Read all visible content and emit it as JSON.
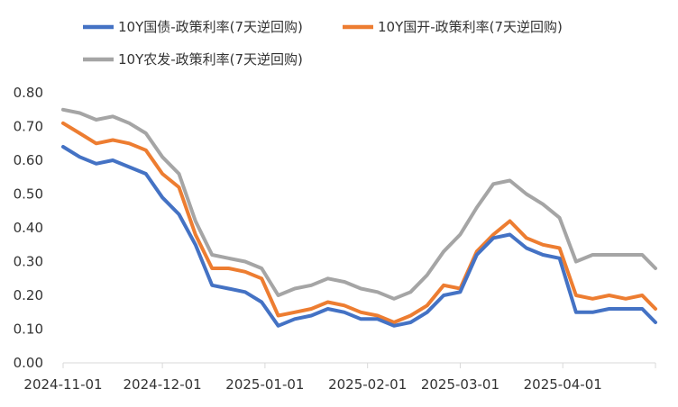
{
  "chart_data": {
    "type": "line",
    "title": "",
    "xlabel": "",
    "ylabel": "",
    "ylim": [
      0,
      0.8
    ],
    "y_ticks": [
      "0.00",
      "0.10",
      "0.20",
      "0.30",
      "0.40",
      "0.50",
      "0.60",
      "0.70",
      "0.80"
    ],
    "x_ticks": [
      "2024-11-01",
      "2024-12-01",
      "2025-01-01",
      "2025-02-01",
      "2025-03-01",
      "2025-04-01"
    ],
    "x_tick_days": [
      0,
      30,
      61,
      92,
      120,
      151
    ],
    "x_range_days": [
      0,
      179
    ],
    "x": [
      0,
      5,
      10,
      15,
      20,
      25,
      30,
      35,
      40,
      45,
      50,
      55,
      60,
      65,
      70,
      75,
      80,
      85,
      90,
      95,
      100,
      105,
      110,
      115,
      120,
      125,
      130,
      135,
      140,
      145,
      150,
      155,
      160,
      165,
      170,
      175,
      179
    ],
    "series": [
      {
        "name": "10Y国债-政策利率(7天逆回购)",
        "color": "#4472c4",
        "values": [
          0.64,
          0.61,
          0.59,
          0.6,
          0.58,
          0.56,
          0.49,
          0.44,
          0.35,
          0.23,
          0.22,
          0.21,
          0.18,
          0.11,
          0.13,
          0.14,
          0.16,
          0.15,
          0.13,
          0.13,
          0.11,
          0.12,
          0.15,
          0.2,
          0.21,
          0.32,
          0.37,
          0.38,
          0.34,
          0.32,
          0.31,
          0.15,
          0.15,
          0.16,
          0.16,
          0.16,
          0.12
        ]
      },
      {
        "name": "10Y国开-政策利率(7天逆回购)",
        "color": "#ed7d31",
        "values": [
          0.71,
          0.68,
          0.65,
          0.66,
          0.65,
          0.63,
          0.56,
          0.52,
          0.38,
          0.28,
          0.28,
          0.27,
          0.25,
          0.14,
          0.15,
          0.16,
          0.18,
          0.17,
          0.15,
          0.14,
          0.12,
          0.14,
          0.17,
          0.23,
          0.22,
          0.33,
          0.38,
          0.42,
          0.37,
          0.35,
          0.34,
          0.2,
          0.19,
          0.2,
          0.19,
          0.2,
          0.16
        ]
      },
      {
        "name": "10Y农发-政策利率(7天逆回购)",
        "color": "#a5a5a5",
        "values": [
          0.75,
          0.74,
          0.72,
          0.73,
          0.71,
          0.68,
          0.61,
          0.56,
          0.42,
          0.32,
          0.31,
          0.3,
          0.28,
          0.2,
          0.22,
          0.23,
          0.25,
          0.24,
          0.22,
          0.21,
          0.19,
          0.21,
          0.26,
          0.33,
          0.38,
          0.46,
          0.53,
          0.54,
          0.5,
          0.47,
          0.43,
          0.3,
          0.32,
          0.32,
          0.32,
          0.32,
          0.28
        ]
      }
    ],
    "legend_position": "top",
    "grid": false
  }
}
